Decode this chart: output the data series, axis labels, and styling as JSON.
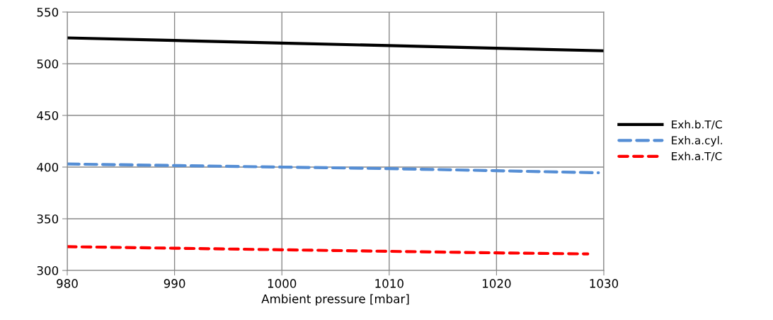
{
  "chart_data": {
    "type": "line",
    "xlabel": "Ambient pressure [mbar]",
    "xlim": [
      980,
      1030
    ],
    "xticks": [
      980,
      990,
      1000,
      1010,
      1020,
      1030
    ],
    "ylim": [
      300,
      550
    ],
    "yticks": [
      300,
      350,
      400,
      450,
      500,
      550
    ],
    "grid": true,
    "legend": "right",
    "marker": "none",
    "series": [
      {
        "name": "Exh.b.T/C",
        "color": "#000000",
        "line_style": "solid",
        "x": [
          980,
          990,
          1000,
          1010,
          1020,
          1030
        ],
        "values": [
          525,
          522.5,
          520,
          517.5,
          515,
          512.5
        ]
      },
      {
        "name": "Exh.a.cyl.",
        "color": "#558ed5",
        "line_style": "dashed",
        "x": [
          980,
          990,
          1000,
          1010,
          1020,
          1029.5
        ],
        "values": [
          403,
          401.5,
          400,
          398.5,
          396.5,
          394.5
        ]
      },
      {
        "name": "Exh.a.T/C",
        "color": "#ff0000",
        "line_style": "dashed",
        "x": [
          980,
          990,
          1000,
          1010,
          1020,
          1028.5
        ],
        "values": [
          323,
          321.5,
          320,
          318.5,
          317,
          316
        ]
      }
    ]
  }
}
